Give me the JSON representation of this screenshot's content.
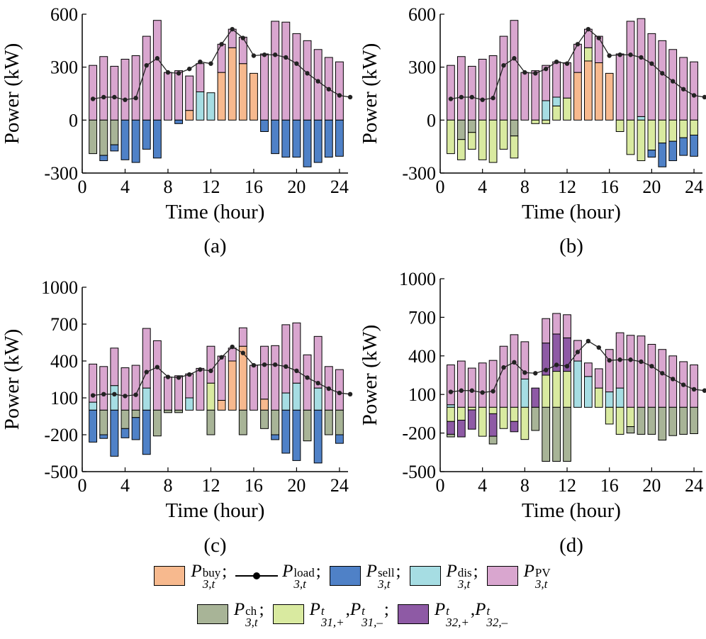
{
  "colors": {
    "buy": "#f7b98e",
    "sell": "#4f81c7",
    "dis": "#a6dde3",
    "pv": "#d9a6cf",
    "ch": "#a8b497",
    "p31": "#d9eaa0",
    "p32": "#8e5aa5",
    "load": "#222222"
  },
  "legend": {
    "buy": {
      "base": "P",
      "sup": "buy",
      "sub": "3,t",
      "sep": ";"
    },
    "load": {
      "base": "P",
      "sup": "load",
      "sub": "3,t",
      "sep": ";"
    },
    "sell": {
      "base": "P",
      "sup": "sell",
      "sub": "3,t",
      "sep": ";"
    },
    "dis": {
      "base": "P",
      "sup": "dis",
      "sub": "3,t",
      "sep": ";"
    },
    "pv": {
      "base": "P",
      "sup": "PV",
      "sub": "3,t",
      "sep": ""
    },
    "ch": {
      "base": "P",
      "sup": "ch",
      "sub": "3,t",
      "sep": ";"
    },
    "p31": {
      "base1": "P",
      "sup1": "t",
      "sub1": "31,+",
      "mid": ",",
      "base2": "P",
      "sup2": "t",
      "sub2": "31,–",
      "sep": ";"
    },
    "p32": {
      "base1": "P",
      "sup1": "t",
      "sub1": "32,+",
      "mid": ",",
      "base2": "P",
      "sup2": "t",
      "sub2": "32,–",
      "sep": ""
    }
  },
  "chart_data": [
    {
      "type": "bar",
      "caption": "(a)",
      "xlabel": "Time (hour)",
      "ylabel": "Power (kW)",
      "xlim": [
        0,
        24.8
      ],
      "ylim": [
        -300,
        600
      ],
      "yticks": [
        -300,
        0,
        300,
        600
      ],
      "xticks": [
        0,
        4,
        8,
        12,
        16,
        20,
        24
      ],
      "x": [
        1,
        2,
        3,
        4,
        5,
        6,
        7,
        8,
        9,
        10,
        11,
        12,
        13,
        14,
        15,
        16,
        17,
        18,
        19,
        20,
        21,
        22,
        23,
        24
      ],
      "positive": [
        {
          "name": "buy",
          "values": [
            0,
            0,
            0,
            0,
            0,
            0,
            0,
            0,
            0,
            55,
            0,
            0,
            270,
            410,
            320,
            265,
            0,
            0,
            0,
            0,
            0,
            0,
            0,
            0
          ]
        },
        {
          "name": "dis",
          "values": [
            0,
            0,
            0,
            0,
            0,
            0,
            0,
            0,
            0,
            0,
            160,
            155,
            0,
            0,
            0,
            0,
            0,
            0,
            0,
            0,
            0,
            0,
            0,
            0
          ]
        },
        {
          "name": "pv",
          "values": [
            310,
            360,
            305,
            345,
            365,
            475,
            565,
            270,
            280,
            195,
            160,
            0,
            160,
            105,
            150,
            0,
            375,
            560,
            555,
            490,
            450,
            400,
            355,
            330
          ]
        }
      ],
      "negative": [
        {
          "name": "ch",
          "values": [
            -190,
            -200,
            -140,
            0,
            0,
            0,
            0,
            0,
            0,
            0,
            0,
            0,
            0,
            0,
            0,
            0,
            0,
            0,
            0,
            0,
            0,
            0,
            0,
            0
          ]
        },
        {
          "name": "p31",
          "values": [
            0,
            0,
            0,
            0,
            0,
            0,
            0,
            0,
            0,
            0,
            0,
            0,
            0,
            0,
            0,
            0,
            0,
            0,
            0,
            0,
            0,
            0,
            0,
            0
          ]
        },
        {
          "name": "sell",
          "values": [
            0,
            -30,
            -35,
            -225,
            -240,
            -165,
            -215,
            0,
            -20,
            0,
            0,
            0,
            0,
            0,
            0,
            0,
            -65,
            -190,
            -210,
            -210,
            -265,
            -240,
            -210,
            -205
          ]
        }
      ],
      "load": [
        120,
        130,
        130,
        115,
        125,
        310,
        350,
        270,
        265,
        290,
        330,
        320,
        430,
        515,
        465,
        365,
        370,
        370,
        355,
        320,
        265,
        220,
        175,
        140,
        130
      ]
    },
    {
      "type": "bar",
      "caption": "(b)",
      "xlabel": "Time (hour)",
      "ylabel": "Power (kW)",
      "xlim": [
        0,
        24.8
      ],
      "ylim": [
        -300,
        600
      ],
      "yticks": [
        -300,
        0,
        300,
        600
      ],
      "xticks": [
        0,
        4,
        8,
        12,
        16,
        20,
        24
      ],
      "x": [
        1,
        2,
        3,
        4,
        5,
        6,
        7,
        8,
        9,
        10,
        11,
        12,
        13,
        14,
        15,
        16,
        17,
        18,
        19,
        20,
        21,
        22,
        23,
        24
      ],
      "positive": [
        {
          "name": "buy",
          "values": [
            0,
            0,
            0,
            0,
            0,
            0,
            0,
            0,
            0,
            0,
            0,
            0,
            270,
            335,
            325,
            265,
            0,
            0,
            0,
            0,
            0,
            0,
            0,
            0
          ]
        },
        {
          "name": "p31",
          "values": [
            0,
            0,
            0,
            0,
            0,
            0,
            0,
            0,
            0,
            0,
            80,
            125,
            0,
            75,
            0,
            0,
            0,
            0,
            0,
            0,
            0,
            0,
            0,
            0
          ]
        },
        {
          "name": "dis",
          "values": [
            0,
            0,
            0,
            0,
            0,
            0,
            0,
            0,
            0,
            110,
            50,
            0,
            0,
            0,
            0,
            0,
            0,
            0,
            20,
            0,
            0,
            0,
            0,
            0
          ]
        },
        {
          "name": "pv",
          "values": [
            310,
            360,
            305,
            345,
            365,
            475,
            565,
            270,
            280,
            200,
            200,
            200,
            160,
            105,
            150,
            0,
            375,
            560,
            555,
            490,
            450,
            400,
            355,
            330
          ]
        }
      ],
      "negative": [
        {
          "name": "ch",
          "values": [
            0,
            -110,
            -70,
            0,
            0,
            0,
            -90,
            0,
            0,
            0,
            0,
            0,
            0,
            0,
            0,
            0,
            0,
            0,
            0,
            0,
            0,
            0,
            0,
            0
          ]
        },
        {
          "name": "p31",
          "values": [
            -190,
            -115,
            -95,
            -225,
            -240,
            -165,
            -125,
            0,
            -20,
            -20,
            0,
            0,
            0,
            0,
            0,
            0,
            -65,
            -195,
            -230,
            -170,
            -130,
            -120,
            -100,
            -85
          ]
        },
        {
          "name": "sell",
          "values": [
            0,
            0,
            0,
            0,
            0,
            0,
            0,
            0,
            0,
            0,
            0,
            0,
            0,
            0,
            0,
            0,
            0,
            0,
            0,
            -40,
            -135,
            -110,
            -100,
            -120
          ]
        }
      ],
      "load": [
        120,
        130,
        130,
        115,
        125,
        310,
        350,
        270,
        265,
        290,
        330,
        320,
        430,
        515,
        465,
        365,
        370,
        370,
        355,
        320,
        265,
        220,
        175,
        140,
        130
      ]
    },
    {
      "type": "bar",
      "caption": "(c)",
      "xlabel": "Time (hour)",
      "ylabel": "Power (kW)",
      "xlim": [
        0,
        24.8
      ],
      "ylim": [
        -500,
        1000
      ],
      "yticks": [
        -500,
        -200,
        100,
        400,
        700,
        1000
      ],
      "xticks": [
        0,
        4,
        8,
        12,
        16,
        20,
        24
      ],
      "x": [
        1,
        2,
        3,
        4,
        5,
        6,
        7,
        8,
        9,
        10,
        11,
        12,
        13,
        14,
        15,
        16,
        17,
        18,
        19,
        20,
        21,
        22,
        23,
        24
      ],
      "positive": [
        {
          "name": "buy",
          "values": [
            0,
            0,
            0,
            0,
            0,
            0,
            0,
            0,
            0,
            0,
            0,
            0,
            80,
            400,
            520,
            0,
            90,
            0,
            0,
            0,
            0,
            0,
            0,
            0
          ]
        },
        {
          "name": "p31",
          "values": [
            0,
            0,
            0,
            0,
            0,
            0,
            0,
            0,
            0,
            0,
            0,
            220,
            0,
            0,
            0,
            0,
            0,
            0,
            0,
            0,
            0,
            0,
            0,
            0
          ]
        },
        {
          "name": "dis",
          "values": [
            65,
            0,
            200,
            0,
            0,
            180,
            0,
            0,
            0,
            100,
            0,
            0,
            0,
            0,
            0,
            0,
            0,
            0,
            140,
            220,
            0,
            180,
            0,
            0
          ]
        },
        {
          "name": "pv",
          "values": [
            310,
            355,
            305,
            345,
            365,
            485,
            565,
            270,
            280,
            195,
            340,
            300,
            360,
            105,
            150,
            365,
            430,
            525,
            555,
            490,
            450,
            420,
            355,
            330
          ]
        }
      ],
      "negative": [
        {
          "name": "ch",
          "values": [
            0,
            -200,
            0,
            -150,
            -60,
            0,
            -210,
            -20,
            -20,
            0,
            0,
            -200,
            0,
            0,
            -200,
            0,
            -150,
            -200,
            0,
            0,
            -250,
            0,
            -200,
            -200
          ]
        },
        {
          "name": "p31",
          "values": [
            0,
            0,
            0,
            0,
            0,
            0,
            0,
            0,
            0,
            0,
            0,
            0,
            0,
            0,
            0,
            0,
            0,
            0,
            0,
            0,
            0,
            0,
            0,
            0
          ]
        },
        {
          "name": "sell",
          "values": [
            -260,
            -30,
            -375,
            -75,
            -180,
            -360,
            0,
            0,
            0,
            0,
            0,
            0,
            0,
            0,
            0,
            0,
            0,
            -40,
            -350,
            -410,
            0,
            -430,
            0,
            -70
          ]
        }
      ],
      "load": [
        120,
        130,
        130,
        115,
        125,
        310,
        350,
        270,
        265,
        290,
        330,
        320,
        430,
        515,
        465,
        365,
        370,
        370,
        355,
        320,
        265,
        220,
        175,
        140,
        130
      ]
    },
    {
      "type": "bar",
      "caption": "(d)",
      "xlabel": "Time (hour)",
      "ylabel": "Power (kW)",
      "xlim": [
        0,
        24.8
      ],
      "ylim": [
        -500,
        1000
      ],
      "yticks": [
        -500,
        -200,
        100,
        400,
        700,
        1000
      ],
      "xticks": [
        0,
        4,
        8,
        12,
        16,
        20,
        24
      ],
      "x": [
        1,
        2,
        3,
        4,
        5,
        6,
        7,
        8,
        9,
        10,
        11,
        12,
        13,
        14,
        15,
        16,
        17,
        18,
        19,
        20,
        21,
        22,
        23,
        24
      ],
      "positive": [
        {
          "name": "p31",
          "values": [
            0,
            0,
            0,
            0,
            0,
            0,
            0,
            0,
            0,
            250,
            280,
            280,
            0,
            0,
            150,
            0,
            0,
            0,
            0,
            0,
            0,
            0,
            0,
            0
          ]
        },
        {
          "name": "p32",
          "values": [
            0,
            0,
            0,
            0,
            0,
            0,
            0,
            0,
            150,
            250,
            290,
            260,
            0,
            0,
            0,
            0,
            0,
            0,
            0,
            0,
            0,
            0,
            0,
            0
          ]
        },
        {
          "name": "dis",
          "values": [
            20,
            0,
            0,
            0,
            0,
            0,
            0,
            220,
            0,
            0,
            0,
            0,
            360,
            240,
            0,
            120,
            150,
            0,
            0,
            0,
            0,
            0,
            0,
            0
          ]
        },
        {
          "name": "pv",
          "values": [
            310,
            360,
            305,
            345,
            365,
            475,
            565,
            290,
            0,
            190,
            160,
            180,
            160,
            105,
            150,
            330,
            430,
            560,
            555,
            490,
            450,
            400,
            355,
            330
          ]
        }
      ],
      "negative": [
        {
          "name": "p31",
          "values": [
            -110,
            -100,
            -20,
            -225,
            -50,
            -165,
            -110,
            -250,
            0,
            0,
            0,
            0,
            0,
            0,
            0,
            -130,
            -210,
            -150,
            0,
            0,
            0,
            0,
            0,
            0
          ]
        },
        {
          "name": "p32",
          "values": [
            -100,
            -130,
            -150,
            0,
            -175,
            0,
            -80,
            0,
            0,
            0,
            0,
            0,
            0,
            0,
            0,
            0,
            0,
            0,
            0,
            0,
            0,
            0,
            0,
            0
          ]
        },
        {
          "name": "ch",
          "values": [
            -20,
            0,
            0,
            0,
            -60,
            0,
            0,
            0,
            -180,
            -420,
            -420,
            -420,
            0,
            0,
            0,
            0,
            0,
            -50,
            -210,
            -210,
            -255,
            -220,
            -210,
            -205
          ]
        }
      ],
      "load": [
        120,
        130,
        130,
        115,
        125,
        310,
        350,
        270,
        265,
        290,
        330,
        320,
        430,
        515,
        465,
        365,
        370,
        370,
        355,
        320,
        265,
        220,
        175,
        140,
        130
      ]
    }
  ]
}
